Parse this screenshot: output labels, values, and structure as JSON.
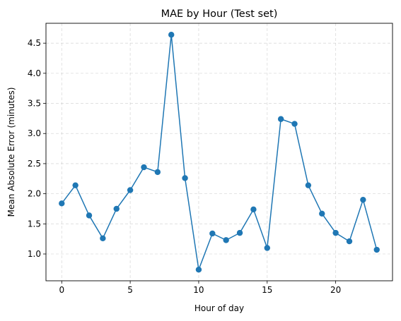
{
  "chart_data": {
    "type": "line",
    "title": "MAE by Hour (Test set)",
    "xlabel": "Hour of day",
    "ylabel": "Mean Absolute Error (minutes)",
    "xlim": [
      -1.15,
      24.15
    ],
    "ylim": [
      0.555,
      4.83
    ],
    "xticks": [
      0,
      5,
      10,
      15,
      20
    ],
    "xtick_labels": [
      "0",
      "5",
      "10",
      "15",
      "20"
    ],
    "yticks": [
      1.0,
      1.5,
      2.0,
      2.5,
      3.0,
      3.5,
      4.0,
      4.5
    ],
    "ytick_labels": [
      "1.0",
      "1.5",
      "2.0",
      "2.5",
      "3.0",
      "3.5",
      "4.0",
      "4.5"
    ],
    "grid": true,
    "series": [
      {
        "color": "#1f77b4",
        "marker": "circle",
        "x": [
          0,
          1,
          2,
          3,
          4,
          5,
          6,
          7,
          8,
          9,
          10,
          11,
          12,
          13,
          14,
          15,
          16,
          17,
          18,
          19,
          20,
          21,
          22,
          23
        ],
        "y": [
          1.84,
          2.14,
          1.64,
          1.26,
          1.75,
          2.06,
          2.44,
          2.36,
          4.64,
          2.26,
          0.74,
          1.34,
          1.23,
          1.35,
          1.74,
          1.1,
          3.24,
          3.16,
          2.14,
          1.67,
          1.35,
          1.21,
          1.9,
          1.07
        ]
      }
    ]
  }
}
